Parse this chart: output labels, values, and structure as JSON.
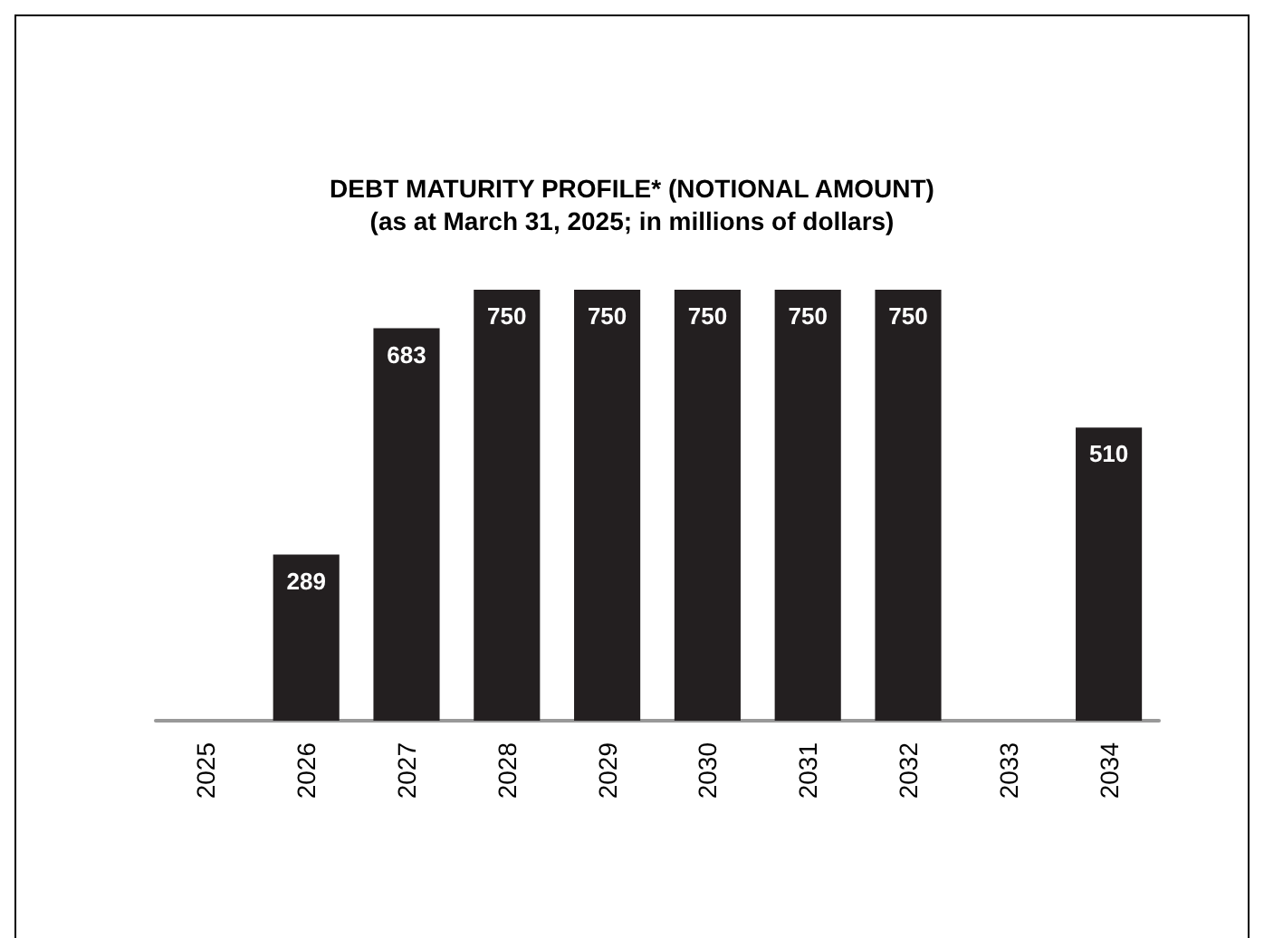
{
  "chart_data": {
    "type": "bar",
    "title": "DEBT MATURITY PROFILE* (NOTIONAL AMOUNT)",
    "subtitle": "(as at March 31, 2025; in millions of dollars)",
    "categories": [
      "2025",
      "2026",
      "2027",
      "2028",
      "2029",
      "2030",
      "2031",
      "2032",
      "2033",
      "2034"
    ],
    "values": [
      null,
      289,
      683,
      750,
      750,
      750,
      750,
      750,
      null,
      510
    ],
    "color": "#231f20",
    "data_labels": true
  }
}
